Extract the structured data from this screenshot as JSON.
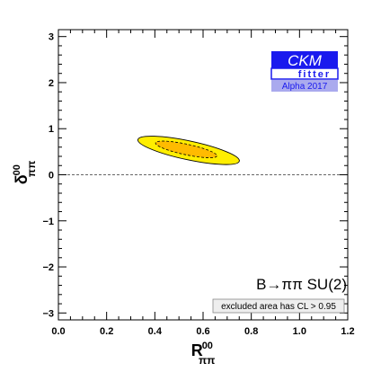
{
  "chart_data": {
    "type": "contour",
    "xlabel": "R",
    "xlabel_sub": "ππ",
    "xlabel_sup": "00",
    "ylabel": "δ",
    "ylabel_sub": "ππ",
    "ylabel_sup": "00",
    "xlim": [
      0.0,
      1.2
    ],
    "ylim": [
      -3.15,
      3.15
    ],
    "x_ticks": [
      0.0,
      0.2,
      0.4,
      0.6,
      0.8,
      1.0,
      1.2
    ],
    "x_tick_labels": [
      "0.0",
      "0.2",
      "0.4",
      "0.6",
      "0.8",
      "1.0",
      "1.2"
    ],
    "y_ticks": [
      -3,
      -2,
      -1,
      0,
      1,
      2,
      3
    ],
    "y_tick_labels": [
      "−3",
      "−2",
      "−1",
      "0",
      "1",
      "2",
      "3"
    ],
    "reference_line_y": 0,
    "regions": [
      {
        "level": "outer",
        "color": "#ffee00",
        "center": [
          0.54,
          0.53
        ],
        "semi_axis_x": 0.215,
        "semi_axis_y": 0.205,
        "angle_deg": 12
      },
      {
        "level": "inner",
        "color": "#ffbb00",
        "center": [
          0.53,
          0.55
        ],
        "semi_axis_x": 0.13,
        "semi_axis_y": 0.115,
        "angle_deg": 12
      }
    ],
    "annotations": {
      "process": "B→ππ SU(2)",
      "note": "excluded area has CL > 0.95"
    },
    "logo": {
      "line1": "CKM",
      "line2": "fitter",
      "line3": "Alpha 2017",
      "color": "#1a1aee",
      "light_color": "#aaaaee"
    }
  }
}
